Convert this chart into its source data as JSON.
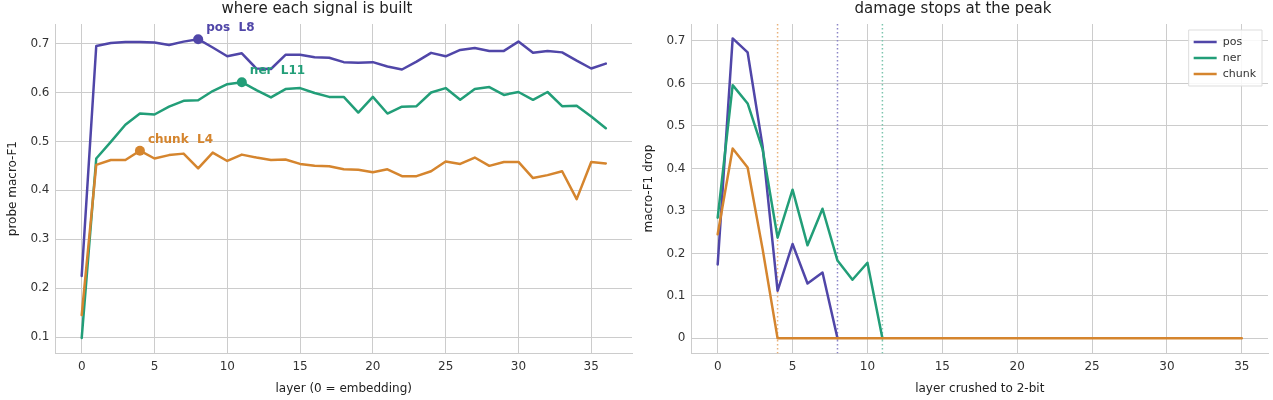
{
  "chart_data": [
    {
      "type": "line",
      "title": "where each signal is built",
      "xlabel": "layer (0 = embedding)",
      "ylabel": "probe macro-F1",
      "x": [
        0,
        1,
        2,
        3,
        4,
        5,
        6,
        7,
        8,
        9,
        10,
        11,
        12,
        13,
        14,
        15,
        16,
        17,
        18,
        19,
        20,
        21,
        22,
        23,
        24,
        25,
        26,
        27,
        28,
        29,
        30,
        31,
        32,
        33,
        34,
        35,
        36
      ],
      "series": [
        {
          "color": "#5046a8",
          "values": [
            0.225,
            0.695,
            0.701,
            0.703,
            0.703,
            0.702,
            0.697,
            0.704,
            0.709,
            0.692,
            0.674,
            0.68,
            0.649,
            0.648,
            0.677,
            0.677,
            0.672,
            0.671,
            0.662,
            0.661,
            0.662,
            0.653,
            0.647,
            0.663,
            0.681,
            0.674,
            0.687,
            0.691,
            0.685,
            0.685,
            0.704,
            0.681,
            0.685,
            0.682,
            0.665,
            0.649,
            0.659
          ]
        },
        {
          "color": "#229e78",
          "values": [
            0.098,
            0.465,
            0.499,
            0.534,
            0.557,
            0.555,
            0.571,
            0.583,
            0.584,
            0.603,
            0.617,
            0.621,
            0.605,
            0.59,
            0.607,
            0.609,
            0.599,
            0.591,
            0.591,
            0.559,
            0.591,
            0.557,
            0.571,
            0.572,
            0.6,
            0.609,
            0.585,
            0.607,
            0.611,
            0.595,
            0.601,
            0.585,
            0.601,
            0.572,
            0.573,
            0.551,
            0.527
          ]
        },
        {
          "color": "#d5852e",
          "values": [
            0.145,
            0.452,
            0.462,
            0.462,
            0.481,
            0.465,
            0.472,
            0.475,
            0.445,
            0.477,
            0.46,
            0.473,
            0.467,
            0.462,
            0.463,
            0.454,
            0.45,
            0.449,
            0.443,
            0.442,
            0.437,
            0.443,
            0.429,
            0.429,
            0.439,
            0.459,
            0.454,
            0.467,
            0.45,
            0.458,
            0.458,
            0.425,
            0.431,
            0.439,
            0.382,
            0.458,
            0.455
          ]
        }
      ],
      "annotations": [
        {
          "text": "pos  L8",
          "x": 8,
          "y": 0.709
        },
        {
          "text": "ner  L11",
          "x": 11,
          "y": 0.621
        },
        {
          "text": "chunk  L4",
          "x": 4,
          "y": 0.481
        }
      ],
      "xlim": [
        -1.8,
        37.8
      ],
      "xticks": [
        0,
        5,
        10,
        15,
        20,
        25,
        30,
        35
      ],
      "ylim": [
        0.067,
        0.74
      ],
      "yticks": [
        0.1,
        0.2,
        0.3,
        0.4,
        0.5,
        0.6,
        0.7
      ],
      "grid": true,
      "legend": false,
      "marker": "none",
      "line_style": "solid"
    },
    {
      "type": "line",
      "title": "damage stops at the peak",
      "xlabel": "layer crushed to 2-bit",
      "ylabel": "macro-F1 drop",
      "x": [
        0,
        1,
        2,
        3,
        4,
        5,
        6,
        7,
        8,
        9,
        10,
        11,
        12,
        13,
        14,
        15,
        16,
        17,
        18,
        19,
        20,
        21,
        22,
        23,
        24,
        25,
        26,
        27,
        28,
        29,
        30,
        31,
        32,
        33,
        34,
        35
      ],
      "series": [
        {
          "name": "pos",
          "color": "#5046a8",
          "values": [
            0.174,
            0.706,
            0.673,
            0.452,
            0.112,
            0.222,
            0.129,
            0.155,
            0,
            null,
            null,
            null,
            null,
            null,
            null,
            null,
            null,
            null,
            null,
            null,
            null,
            null,
            null,
            null,
            null,
            null,
            null,
            null,
            null,
            null,
            null,
            null,
            null,
            null,
            null,
            null
          ]
        },
        {
          "name": "ner",
          "color": "#229e78",
          "values": [
            0.284,
            0.596,
            0.553,
            0.445,
            0.237,
            0.35,
            0.219,
            0.305,
            0.183,
            0.138,
            0.178,
            0,
            null,
            null,
            null,
            null,
            null,
            null,
            null,
            null,
            null,
            null,
            null,
            null,
            null,
            null,
            null,
            null,
            null,
            null,
            null,
            null,
            null,
            null,
            null,
            null
          ]
        },
        {
          "name": "chunk",
          "color": "#d5852e",
          "values": [
            0.245,
            0.447,
            0.402,
            0.21,
            0,
            0,
            0,
            0,
            0,
            0,
            0,
            0,
            0,
            0,
            0,
            0,
            0,
            0,
            0,
            0,
            0,
            0,
            0,
            0,
            0,
            0,
            0,
            0,
            0,
            0,
            0,
            0,
            0,
            0,
            0,
            0
          ]
        }
      ],
      "ref_lines": [
        {
          "axis": "x",
          "value": 4,
          "color": "#e9b27a",
          "line_style": "dotted"
        },
        {
          "axis": "x",
          "value": 8,
          "color": "#8c86c8",
          "line_style": "dotted"
        },
        {
          "axis": "x",
          "value": 11,
          "color": "#7cc6ae",
          "line_style": "dotted"
        }
      ],
      "xlim": [
        -1.75,
        36.75
      ],
      "xticks": [
        0,
        5,
        10,
        15,
        20,
        25,
        30,
        35
      ],
      "ylim": [
        -0.035,
        0.74
      ],
      "yticks": [
        0,
        0.1,
        0.2,
        0.3,
        0.4,
        0.5,
        0.6,
        0.7
      ],
      "grid": true,
      "legend": "top right",
      "marker": "none",
      "line_style": "solid"
    }
  ]
}
